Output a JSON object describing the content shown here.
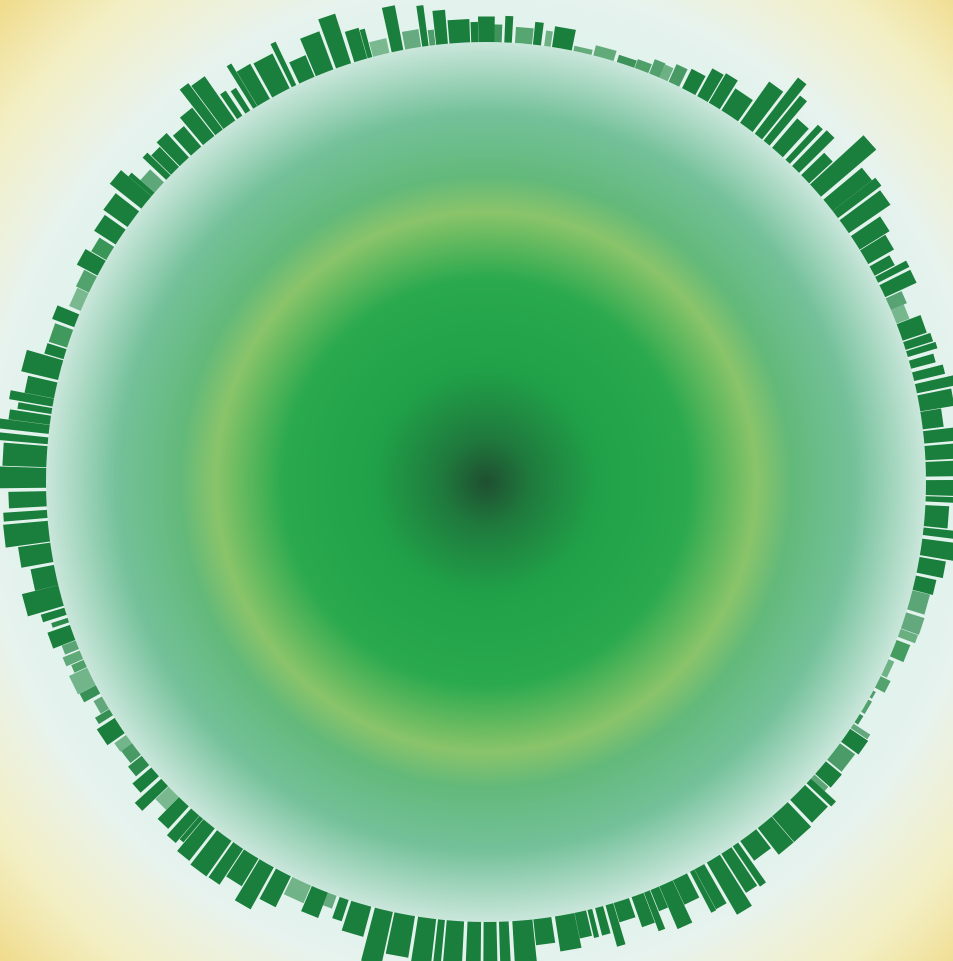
{
  "scene": {
    "kind": "circular-skyline-planet",
    "colors": {
      "outer_glow": "#efd77f",
      "halo": "#dff0ea",
      "planet_rim": "#cfe7dd",
      "planet_mid": "#6fbf7a",
      "planet_band": "#8ac46a",
      "planet_inner": "#23a24a",
      "planet_core": "#1f5a33",
      "skyline": "#1a7f3c",
      "skyline_light": "#2f8f4d"
    }
  }
}
